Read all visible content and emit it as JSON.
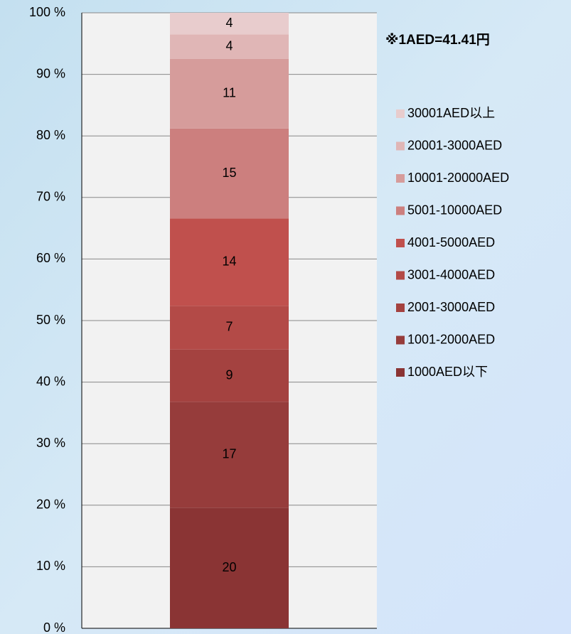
{
  "chart_data": {
    "type": "stacked_bar",
    "annotation": "※1AED=41.41円",
    "categories": [
      null
    ],
    "series": [
      {
        "name": "1000AED以下",
        "color": "#8a3434",
        "values": [
          19.6
        ],
        "value_labels": [
          "20"
        ]
      },
      {
        "name": "1001-2000AED",
        "color": "#963c3b",
        "values": [
          17.2
        ],
        "value_labels": [
          "17"
        ]
      },
      {
        "name": "2001-3000AED",
        "color": "#a44240",
        "values": [
          8.5
        ],
        "value_labels": [
          "9"
        ]
      },
      {
        "name": "3001-4000AED",
        "color": "#b34a47",
        "values": [
          7.1
        ],
        "value_labels": [
          "7"
        ]
      },
      {
        "name": "4001-5000AED",
        "color": "#c0504d",
        "values": [
          14.2
        ],
        "value_labels": [
          "14"
        ]
      },
      {
        "name": "5001-10000AED",
        "color": "#cc7f7e",
        "values": [
          14.6
        ],
        "value_labels": [
          "15"
        ]
      },
      {
        "name": "10001-20000AED",
        "color": "#d69c9b",
        "values": [
          11.3
        ],
        "value_labels": [
          "11"
        ]
      },
      {
        "name": "20001-3000AED",
        "color": "#e0b6b6",
        "values": [
          4.0
        ],
        "value_labels": [
          "4"
        ]
      },
      {
        "name": "30001AED以上",
        "color": "#e8cccd",
        "values": [
          3.5
        ],
        "value_labels": [
          "4"
        ]
      }
    ],
    "ylim": [
      0,
      100
    ],
    "yticks": [
      {
        "value": 0,
        "label": "0 %"
      },
      {
        "value": 10,
        "label": "10 %"
      },
      {
        "value": 20,
        "label": "20 %"
      },
      {
        "value": 30,
        "label": "30 %"
      },
      {
        "value": 40,
        "label": "40 %"
      },
      {
        "value": 50,
        "label": "50 %"
      },
      {
        "value": 60,
        "label": "60 %"
      },
      {
        "value": 70,
        "label": "70 %"
      },
      {
        "value": 80,
        "label": "80 %"
      },
      {
        "value": 90,
        "label": "90 %"
      },
      {
        "value": 100,
        "label": "100 %"
      }
    ],
    "grid": true,
    "legend": "right"
  }
}
